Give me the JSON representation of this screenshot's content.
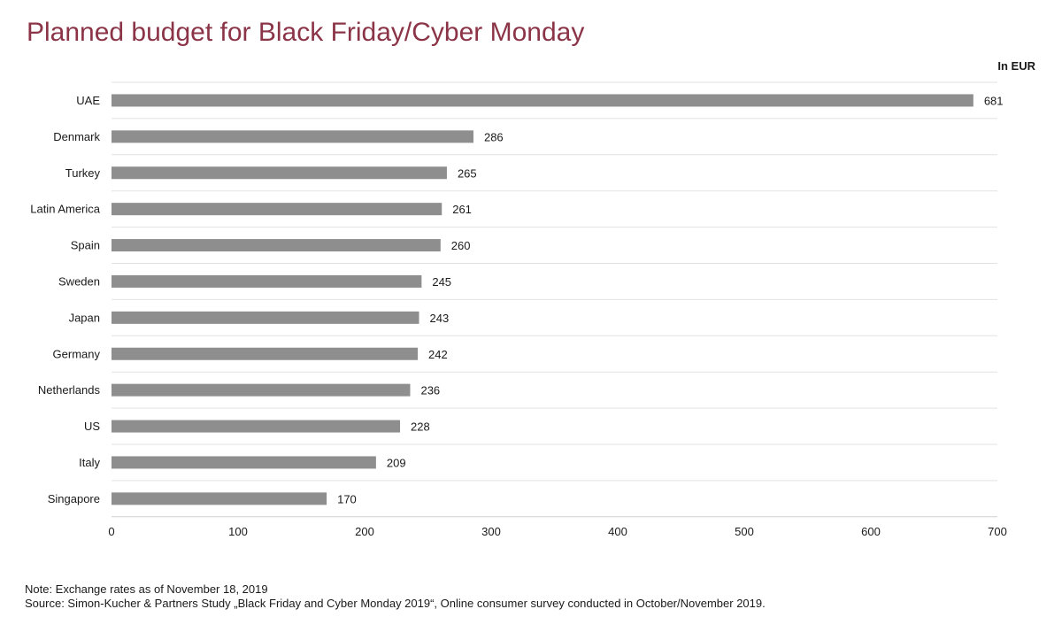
{
  "chart_data": {
    "type": "bar",
    "orientation": "horizontal",
    "title": "Planned budget for Black Friday/Cyber Monday",
    "unit_label": "In EUR",
    "categories": [
      "UAE",
      "Denmark",
      "Turkey",
      "Latin America",
      "Spain",
      "Sweden",
      "Japan",
      "Germany",
      "Netherlands",
      "US",
      "Italy",
      "Singapore"
    ],
    "values": [
      681,
      286,
      265,
      261,
      260,
      245,
      243,
      242,
      236,
      228,
      209,
      170
    ],
    "xlim": [
      0,
      700
    ],
    "xticks": [
      0,
      100,
      200,
      300,
      400,
      500,
      600,
      700
    ],
    "grid": "horizontal row separators",
    "bar_color": "#8e8e8e",
    "title_color": "#8b3447"
  },
  "notes": {
    "note": "Note: Exchange rates as of November 18, 2019",
    "source": "Source: Simon-Kucher & Partners Study „Black Friday and Cyber Monday 2019“, Online consumer survey conducted in October/November 2019."
  }
}
